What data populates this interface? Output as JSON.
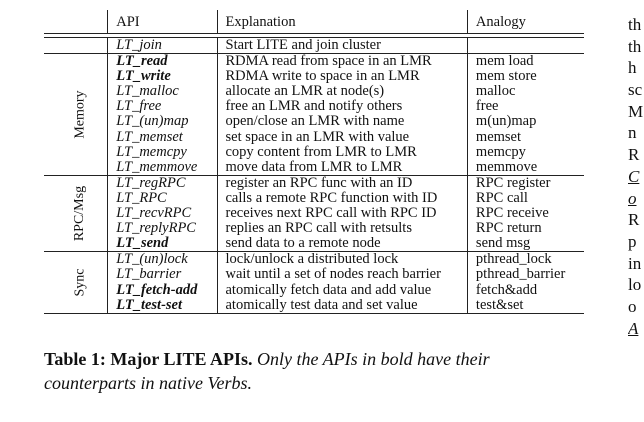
{
  "table": {
    "headers": {
      "api": "API",
      "explanation": "Explanation",
      "analogy": "Analogy"
    },
    "top_row": {
      "api": "LT_join",
      "explanation": "Start LITE and join cluster",
      "analogy": "",
      "bold": false
    },
    "groups": [
      {
        "label": "Memory",
        "rows": [
          {
            "api": "LT_read",
            "explanation": "RDMA read from space in an LMR",
            "analogy": "mem load",
            "bold": true
          },
          {
            "api": "LT_write",
            "explanation": "RDMA write to space in an LMR",
            "analogy": "mem store",
            "bold": true
          },
          {
            "api": "LT_malloc",
            "explanation": "allocate an LMR at node(s)",
            "analogy": "malloc",
            "bold": false
          },
          {
            "api": "LT_free",
            "explanation": "free an LMR and notify others",
            "analogy": "free",
            "bold": false
          },
          {
            "api": "LT_(un)map",
            "explanation": "open/close an LMR with name",
            "analogy": "m(un)map",
            "bold": false
          },
          {
            "api": "LT_memset",
            "explanation": "set space in an LMR with value",
            "analogy": "memset",
            "bold": false
          },
          {
            "api": "LT_memcpy",
            "explanation": "copy content from LMR to LMR",
            "analogy": "memcpy",
            "bold": false
          },
          {
            "api": "LT_memmove",
            "explanation": "move data from LMR to LMR",
            "analogy": "memmove",
            "bold": false
          }
        ]
      },
      {
        "label": "RPC/Msg",
        "rows": [
          {
            "api": "LT_regRPC",
            "explanation": "register an RPC func with an ID",
            "analogy": "RPC register",
            "bold": false
          },
          {
            "api": "LT_RPC",
            "explanation": "calls a remote RPC function with ID",
            "analogy": "RPC call",
            "bold": false
          },
          {
            "api": "LT_recvRPC",
            "explanation": "receives next RPC call with RPC ID",
            "analogy": "RPC receive",
            "bold": false
          },
          {
            "api": "LT_replyRPC",
            "explanation": "replies an RPC call with retsults",
            "analogy": "RPC return",
            "bold": false
          },
          {
            "api": "LT_send",
            "explanation": "send data to a remote node",
            "analogy": "send msg",
            "bold": true
          }
        ]
      },
      {
        "label": "Sync",
        "rows": [
          {
            "api": "LT_(un)lock",
            "explanation": "lock/unlock a distributed lock",
            "analogy": "pthread_lock",
            "bold": false
          },
          {
            "api": "LT_barrier",
            "explanation": "wait until a set of nodes reach barrier",
            "analogy": "pthread_barrier",
            "bold": false
          },
          {
            "api": "LT_fetch-add",
            "explanation": "atomically fetch data and add value",
            "analogy": "fetch&add",
            "bold": true
          },
          {
            "api": "LT_test-set",
            "explanation": "atomically test data and set value",
            "analogy": "test&set",
            "bold": true
          }
        ]
      }
    ]
  },
  "caption": {
    "label": "Table 1: Major LITE APIs.",
    "note_line1": "Only the APIs in bold have their",
    "note_line2": "counterparts in native Verbs."
  },
  "right_column_fragments": [
    "th",
    "th",
    "h",
    "sc",
    "M",
    "n",
    "R",
    "C",
    "o",
    "R",
    "p",
    "in",
    "lo",
    "o",
    "A"
  ]
}
